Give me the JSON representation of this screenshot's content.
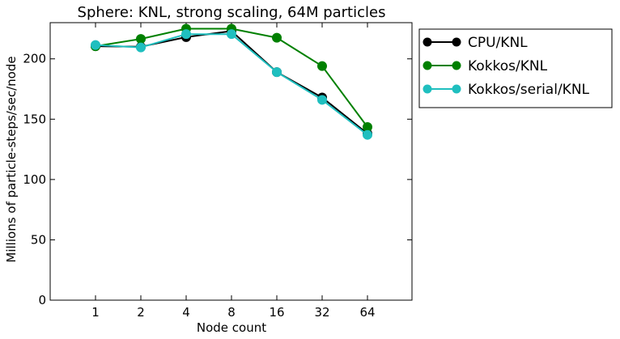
{
  "chart_data": {
    "type": "line",
    "title": "Sphere: KNL, strong scaling, 64M particles",
    "xlabel": "Node count",
    "ylabel": "Millions of particle-steps/sec/node",
    "categories": [
      "1",
      "2",
      "4",
      "8",
      "16",
      "32",
      "64"
    ],
    "ylim": [
      0,
      230
    ],
    "yticks": [
      0,
      50,
      100,
      150,
      200
    ],
    "grid": false,
    "legend_position": "top-right, outside plot",
    "series": [
      {
        "name": "CPU/KNL",
        "color": "#000000",
        "values": [
          210.5,
          210,
          218,
          223,
          189,
          168,
          138
        ]
      },
      {
        "name": "Kokkos/KNL",
        "color": "#008000",
        "values": [
          210.5,
          216.5,
          225,
          225,
          217.5,
          194,
          143.5
        ]
      },
      {
        "name": "Kokkos/serial/KNL",
        "color": "#1fbfbf",
        "values": [
          211.5,
          209.5,
          220.5,
          220.5,
          189,
          166,
          137
        ]
      }
    ]
  }
}
